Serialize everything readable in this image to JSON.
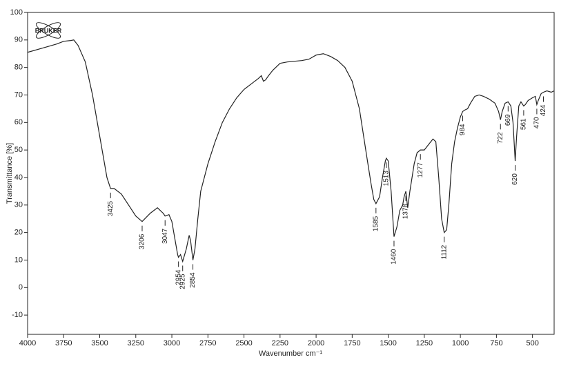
{
  "chart_data": {
    "type": "line",
    "logo": "BRUKER",
    "x_label": "Wavenumber cm⁻¹",
    "y_label": "Transmittance [%]",
    "xlim": [
      4000,
      350
    ],
    "ylim": [
      -17,
      100
    ],
    "xticks": [
      4000,
      3750,
      3500,
      3250,
      3000,
      2750,
      2500,
      2250,
      2000,
      1750,
      1500,
      1250,
      1000,
      750,
      500
    ],
    "yticks": [
      -10,
      0,
      10,
      20,
      30,
      40,
      50,
      60,
      70,
      80,
      90,
      100
    ],
    "x": [
      4000,
      3900,
      3800,
      3750,
      3700,
      3680,
      3650,
      3600,
      3550,
      3500,
      3450,
      3425,
      3400,
      3350,
      3300,
      3250,
      3206,
      3150,
      3100,
      3060,
      3047,
      3020,
      3000,
      2980,
      2960,
      2954,
      2940,
      2925,
      2900,
      2880,
      2870,
      2854,
      2840,
      2820,
      2800,
      2750,
      2700,
      2650,
      2600,
      2550,
      2500,
      2450,
      2400,
      2380,
      2365,
      2350,
      2330,
      2300,
      2250,
      2200,
      2100,
      2050,
      2000,
      1950,
      1900,
      1850,
      1800,
      1750,
      1700,
      1650,
      1620,
      1600,
      1585,
      1560,
      1540,
      1520,
      1513,
      1500,
      1480,
      1460,
      1440,
      1420,
      1400,
      1390,
      1378,
      1365,
      1350,
      1320,
      1300,
      1277,
      1250,
      1220,
      1190,
      1170,
      1150,
      1130,
      1112,
      1095,
      1080,
      1060,
      1040,
      1020,
      1000,
      984,
      970,
      950,
      930,
      900,
      870,
      840,
      800,
      760,
      735,
      722,
      710,
      690,
      669,
      650,
      635,
      620,
      610,
      595,
      580,
      561,
      550,
      530,
      500,
      480,
      470,
      460,
      440,
      424,
      400,
      370,
      350
    ],
    "series": [
      {
        "color": "#222222",
        "values": [
          85.5,
          87,
          88.5,
          89.5,
          89.8,
          90,
          88,
          82,
          70,
          55,
          40,
          36,
          36,
          34,
          30,
          26,
          24,
          27,
          29,
          27,
          26,
          26.5,
          24,
          18,
          12,
          11,
          12,
          9.5,
          14,
          19,
          17,
          10,
          14,
          25,
          35,
          45,
          53,
          60,
          65,
          69,
          72,
          74,
          76,
          77,
          75,
          75.5,
          77,
          79,
          81.5,
          82,
          82.5,
          83,
          84.5,
          85,
          84,
          82.5,
          80,
          75,
          65,
          48,
          38,
          32,
          30.5,
          33,
          40,
          46,
          47,
          46,
          35,
          18.5,
          22,
          28,
          30,
          33,
          35,
          29,
          35,
          45,
          49,
          50,
          50,
          52,
          54,
          53,
          40,
          25,
          20,
          21,
          30,
          45,
          53,
          58,
          62,
          64,
          64.5,
          65,
          67,
          69.5,
          70,
          69.5,
          68.5,
          67,
          64,
          61,
          64,
          67,
          67.5,
          66,
          60,
          46,
          55,
          66,
          67.5,
          66,
          66.5,
          68,
          69,
          69.5,
          66.5,
          68,
          70.5,
          71,
          71.5,
          71,
          71.5
        ]
      }
    ],
    "peaks": [
      {
        "x": 3425,
        "y": 36
      },
      {
        "x": 3206,
        "y": 24
      },
      {
        "x": 3047,
        "y": 26
      },
      {
        "x": 2954,
        "y": 11
      },
      {
        "x": 2925,
        "y": 9.5
      },
      {
        "x": 2854,
        "y": 10
      },
      {
        "x": 1585,
        "y": 30.5
      },
      {
        "x": 1513,
        "y": 47
      },
      {
        "x": 1460,
        "y": 18.5
      },
      {
        "x": 1378,
        "y": 35
      },
      {
        "x": 1277,
        "y": 50
      },
      {
        "x": 1112,
        "y": 20
      },
      {
        "x": 984,
        "y": 64
      },
      {
        "x": 722,
        "y": 61
      },
      {
        "x": 669,
        "y": 67.5
      },
      {
        "x": 620,
        "y": 46
      },
      {
        "x": 561,
        "y": 66
      },
      {
        "x": 470,
        "y": 66.5
      },
      {
        "x": 424,
        "y": 71
      }
    ]
  }
}
